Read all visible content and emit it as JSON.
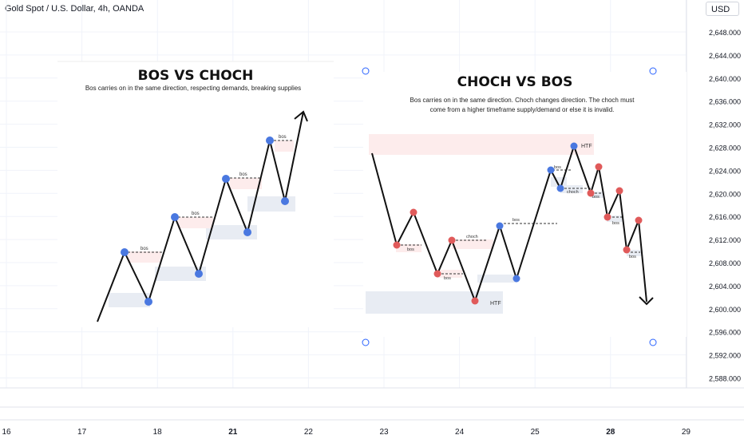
{
  "header": {
    "title": "Gold Spot / U.S. Dollar, 4h, OANDA",
    "currency": "USD"
  },
  "price_axis": [
    "2,648.000",
    "2,644.000",
    "2,640.000",
    "2,636.000",
    "2,632.000",
    "2,628.000",
    "2,624.000",
    "2,620.000",
    "2,616.000",
    "2,612.000",
    "2,608.000",
    "2,604.000",
    "2,600.000",
    "2,596.000",
    "2,592.000",
    "2,588.000"
  ],
  "time_axis": [
    {
      "label": "16",
      "bold": false
    },
    {
      "label": "17",
      "bold": false
    },
    {
      "label": "18",
      "bold": false
    },
    {
      "label": "21",
      "bold": true
    },
    {
      "label": "22",
      "bold": false
    },
    {
      "label": "23",
      "bold": false
    },
    {
      "label": "24",
      "bold": false
    },
    {
      "label": "25",
      "bold": false
    },
    {
      "label": "28",
      "bold": true
    },
    {
      "label": "29",
      "bold": false
    }
  ],
  "left_panel": {
    "title": "BOS VS CHOCH",
    "subtitle": "Bos carries on in the same direction, respecting demands, breaking supplies",
    "tag": "bos"
  },
  "right_panel": {
    "title": "CHOCH VS BOS",
    "subtitle_line1": "Bos carries on in the same direction. Choch changes direction. The choch must",
    "subtitle_line2": "come from a higher timeframe supply/demand or else it is invalid.",
    "tags": {
      "bos": "bos",
      "choch": "choch",
      "htf": "HTF"
    }
  },
  "colors": {
    "bullish_point": "#4a78e0",
    "bearish_point": "#e05a5a",
    "supply_zone": "#fdecec",
    "demand_zone": "#e8ecf3",
    "line": "#131722",
    "handle": "#2962ff"
  }
}
